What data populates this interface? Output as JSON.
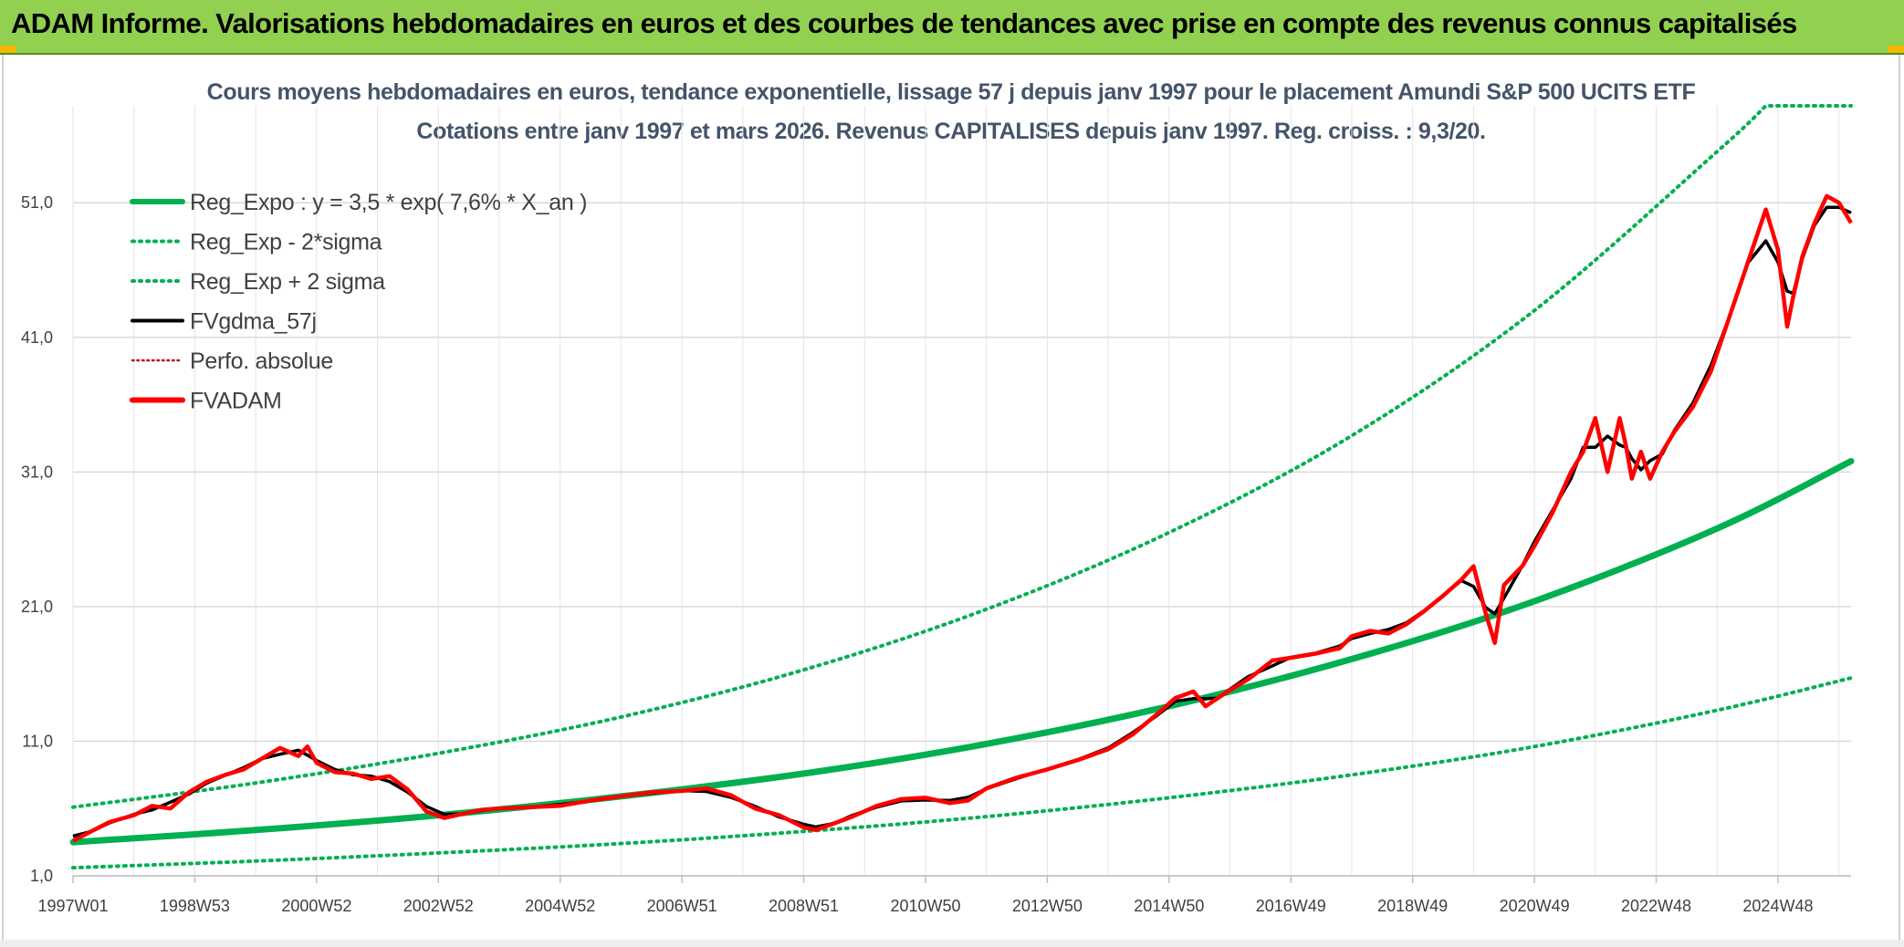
{
  "header": {
    "title": "ADAM Informe. Valorisations hebdomadaires en euros et des courbes de tendances avec prise en compte des revenus connus capitalisés"
  },
  "chart_data": {
    "type": "line",
    "title_lines": [
      "Cours moyens hebdomadaires en euros, tendance exponentielle, lissage 57 j depuis janv 1997 pour le placement Amundi S&P 500 UCITS ETF",
      "Cotations entre janv 1997 et mars 2026.  Revenus CAPITALISES depuis janv 1997. Reg. croiss. : 9,3/20."
    ],
    "xlabel": "",
    "ylabel": "",
    "x_range": [
      1997.0,
      2026.2
    ],
    "ylim": [
      1.0,
      58.2
    ],
    "y_ticks": [
      "1,0",
      "11,0",
      "21,0",
      "31,0",
      "41,0",
      "51,0"
    ],
    "y_tick_values": [
      1,
      11,
      21,
      31,
      41,
      51
    ],
    "x_tick_labels": [
      "1997W01",
      "1998W53",
      "2000W52",
      "2002W52",
      "2004W52",
      "2006W51",
      "2008W51",
      "2010W50",
      "2012W50",
      "2014W50",
      "2016W49",
      "2018W49",
      "2020W49",
      "2022W48",
      "2024W48"
    ],
    "x_tick_values": [
      1997.0,
      1999.0,
      2001.0,
      2003.0,
      2005.0,
      2007.0,
      2009.0,
      2011.0,
      2013.0,
      2015.0,
      2017.0,
      2019.0,
      2021.0,
      2023.0,
      2025.0
    ],
    "grid": true,
    "legend_position": "top-left",
    "legend": [
      {
        "key": "reg",
        "label": "Reg_Expo : y = 3,5 * exp( 7,6% *  X_an )",
        "color": "#00b050",
        "style": "solid-thick"
      },
      {
        "key": "low",
        "label": "Reg_Exp - 2*sigma",
        "color": "#00b050",
        "style": "dotted"
      },
      {
        "key": "high",
        "label": "Reg_Exp + 2 sigma",
        "color": "#00b050",
        "style": "dotted"
      },
      {
        "key": "gdma",
        "label": "FVgdma_57j",
        "color": "#000000",
        "style": "solid"
      },
      {
        "key": "perf",
        "label": "Perfo. absolue",
        "color": "#c00000",
        "style": "dotted"
      },
      {
        "key": "fvadam",
        "label": "FVADAM",
        "color": "#ff0000",
        "style": "solid-thick"
      }
    ],
    "series": [
      {
        "key": "reg",
        "x": [
          1997.0,
          2000.0,
          2003.0,
          2006.0,
          2009.0,
          2012.0,
          2015.0,
          2018.0,
          2021.0,
          2024.0,
          2026.2
        ],
        "values": [
          3.5,
          4.4,
          5.5,
          6.9,
          8.6,
          10.8,
          13.6,
          17.1,
          21.4,
          26.8,
          31.8
        ]
      },
      {
        "key": "low",
        "x": [
          1997.0,
          2000.0,
          2003.0,
          2006.0,
          2009.0,
          2012.0,
          2015.0,
          2018.0,
          2021.0,
          2024.0,
          2026.2
        ],
        "values": [
          1.6,
          2.1,
          2.7,
          3.4,
          4.3,
          5.4,
          6.8,
          8.5,
          10.6,
          13.3,
          15.7
        ]
      },
      {
        "key": "high",
        "x": [
          1997.0,
          2000.0,
          2003.0,
          2006.0,
          2009.0,
          2012.0,
          2015.0,
          2018.0,
          2021.0,
          2024.0,
          2024.8,
          2026.2
        ],
        "values": [
          6.1,
          7.9,
          10.1,
          12.8,
          16.3,
          20.8,
          26.5,
          33.7,
          43.0,
          54.8,
          58.2,
          58.2
        ]
      },
      {
        "key": "fvadam",
        "x": [
          1997.0,
          1997.3,
          1997.6,
          1998.0,
          1998.3,
          1998.6,
          1998.9,
          1999.2,
          1999.5,
          1999.8,
          2000.1,
          2000.4,
          2000.7,
          2000.85,
          2001.0,
          2001.3,
          2001.6,
          2001.9,
          2002.2,
          2002.5,
          2002.8,
          2003.1,
          2003.4,
          2003.7,
          2004.0,
          2004.5,
          2005.0,
          2005.5,
          2006.0,
          2006.5,
          2007.0,
          2007.4,
          2007.8,
          2008.2,
          2008.6,
          2009.0,
          2009.2,
          2009.5,
          2009.8,
          2010.2,
          2010.6,
          2011.0,
          2011.4,
          2011.7,
          2012.0,
          2012.5,
          2013.0,
          2013.5,
          2014.0,
          2014.4,
          2014.8,
          2015.1,
          2015.4,
          2015.6,
          2015.8,
          2016.0,
          2016.3,
          2016.7,
          2017.0,
          2017.4,
          2017.8,
          2018.0,
          2018.3,
          2018.6,
          2018.9,
          2019.2,
          2019.5,
          2019.8,
          2020.0,
          2020.2,
          2020.35,
          2020.5,
          2020.8,
          2021.0,
          2021.3,
          2021.6,
          2021.8,
          2022.0,
          2022.2,
          2022.4,
          2022.5,
          2022.6,
          2022.75,
          2022.9,
          2023.1,
          2023.3,
          2023.6,
          2023.9,
          2024.2,
          2024.5,
          2024.8,
          2025.0,
          2025.15,
          2025.25,
          2025.4,
          2025.6,
          2025.8,
          2026.0,
          2026.2
        ],
        "values": [
          3.6,
          4.3,
          5.0,
          5.5,
          6.2,
          6.0,
          7.2,
          8.0,
          8.5,
          8.9,
          9.7,
          10.5,
          9.9,
          10.6,
          9.4,
          8.7,
          8.6,
          8.2,
          8.4,
          7.4,
          5.8,
          5.3,
          5.6,
          5.9,
          6.0,
          6.1,
          6.2,
          6.6,
          6.9,
          7.2,
          7.3,
          7.5,
          7.0,
          6.0,
          5.5,
          4.6,
          4.4,
          4.9,
          5.4,
          6.2,
          6.7,
          6.8,
          6.4,
          6.6,
          7.5,
          8.3,
          8.9,
          9.6,
          10.4,
          11.5,
          13.0,
          14.2,
          14.7,
          13.6,
          14.2,
          14.8,
          15.6,
          17.0,
          17.2,
          17.5,
          17.9,
          18.8,
          19.2,
          19.0,
          19.7,
          20.7,
          21.8,
          23.0,
          24.0,
          20.5,
          18.3,
          22.6,
          24.0,
          25.5,
          28.0,
          31.0,
          32.5,
          35.0,
          31.0,
          35.0,
          33.0,
          30.5,
          32.5,
          30.5,
          32.5,
          34.0,
          35.8,
          38.5,
          42.5,
          46.5,
          50.5,
          47.5,
          41.8,
          44.0,
          47.0,
          49.5,
          51.5,
          51.0,
          49.5
        ]
      }
    ]
  }
}
